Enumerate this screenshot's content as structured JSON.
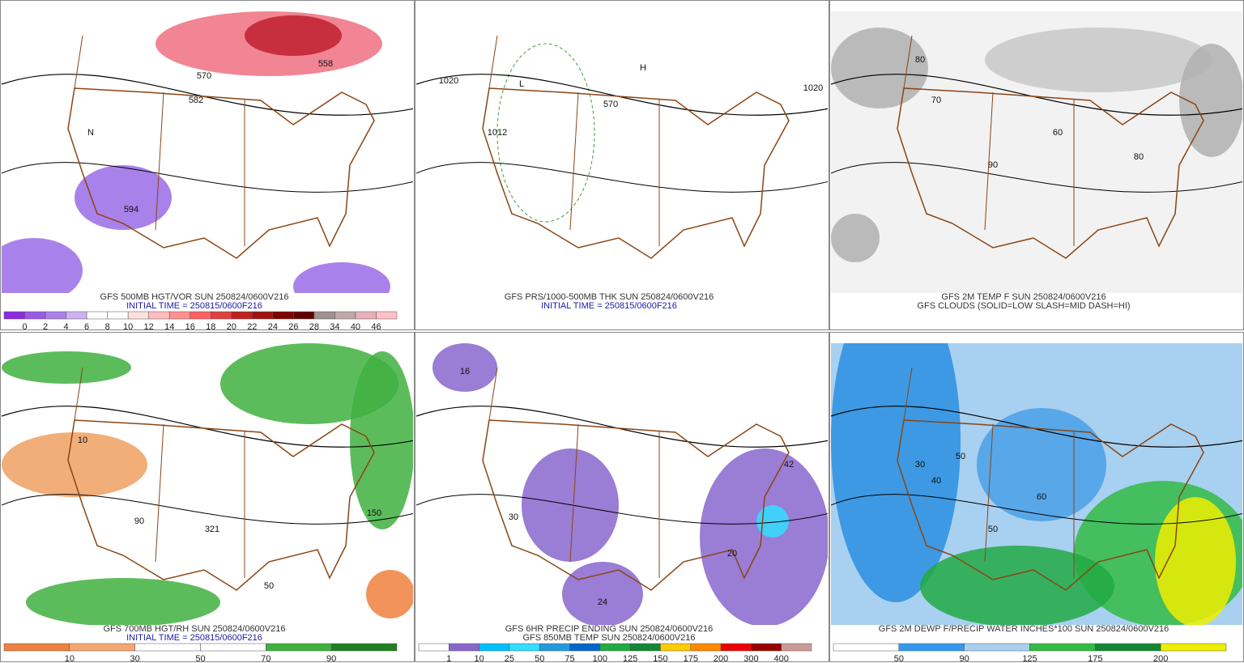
{
  "panels": [
    {
      "captions": [
        {
          "text": "GFS 500MB HGT/VOR SUN 250824/0600V216",
          "color": "#333333"
        },
        {
          "text": "INITIAL TIME = 250815/0600F216",
          "color": "#1a1aa6"
        }
      ],
      "background": "#ffffff",
      "colorbar": {
        "colors": [
          "#8a2be2",
          "#9b59e6",
          "#ad80ea",
          "#cdb2f2",
          "#ffffff",
          "#ffffff",
          "#ffe0e0",
          "#ffbcbc",
          "#ff9090",
          "#ff6060",
          "#e04040",
          "#c02020",
          "#a01010",
          "#800000",
          "#600000",
          "#a09090",
          "#c0a8a8",
          "#e8b0b8",
          "#ffc0c8"
        ],
        "labels": [
          "0",
          "2",
          "4",
          "6",
          "8",
          "10",
          "12",
          "14",
          "16",
          "18",
          "20",
          "22",
          "24",
          "26",
          "28",
          "34",
          "40",
          "46"
        ]
      },
      "map_labels": [
        "570",
        "582",
        "558",
        "594",
        "N"
      ]
    },
    {
      "captions": [
        {
          "text": "GFS PRS/1000-500MB THK SUN 250824/0600V216",
          "color": "#333333"
        },
        {
          "text": "INITIAL TIME = 250815/0600F216",
          "color": "#1a1aa6"
        }
      ],
      "background": "#ffffff",
      "map_labels": [
        "1020",
        "1012",
        "L",
        "H",
        "570",
        "1020"
      ]
    },
    {
      "captions": [
        {
          "text": "GFS 2M TEMP F SUN 250824/0600V216",
          "color": "#333333"
        },
        {
          "text": "GFS CLOUDS (SOLID=LOW SLASH=MID DASH=HI)",
          "color": "#333333"
        }
      ],
      "background": "#f2f2f2",
      "map_labels": [
        "80",
        "70",
        "90",
        "60",
        "80"
      ]
    },
    {
      "captions": [
        {
          "text": "GFS 700MB HGT/RH SUN 250824/0600V216",
          "color": "#333333"
        },
        {
          "text": "INITIAL TIME = 250815/0600F216",
          "color": "#1a1aa6"
        }
      ],
      "background": "#ffffff",
      "colorbar": {
        "colors": [
          "#f08040",
          "#f4a870",
          "#ffffff",
          "#ffffff",
          "#40b040",
          "#208020"
        ],
        "labels": [
          "10",
          "30",
          "50",
          "70",
          "90"
        ]
      },
      "map_labels": [
        "90",
        "50",
        "321",
        "10",
        "150"
      ]
    },
    {
      "captions": [
        {
          "text": "GFS 6HR PRECIP ENDING SUN 250824/0600V216",
          "color": "#333333"
        },
        {
          "text": "GFS 850MB TEMP SUN 250824/0600V216",
          "color": "#333333"
        }
      ],
      "background": "#ffffff",
      "colorbar": {
        "colors": [
          "#ffffff",
          "#8866cc",
          "#00c0ff",
          "#33ddff",
          "#2299dd",
          "#0066cc",
          "#22aa44",
          "#118833",
          "#ffcc00",
          "#ff8800",
          "#ee0000",
          "#990000",
          "#cc9999"
        ],
        "labels": [
          "1",
          "10",
          "25",
          "50",
          "75",
          "100",
          "125",
          "150",
          "175",
          "200",
          "300",
          "400"
        ]
      },
      "map_labels": [
        "24",
        "20",
        "42",
        "16",
        "30"
      ]
    },
    {
      "captions": [
        {
          "text": "GFS 2M DEWP F/PRECIP WATER INCHES*100 SUN 250824/0600V216",
          "color": "#333333"
        }
      ],
      "background": "#a8d0f0",
      "colorbar": {
        "colors": [
          "#ffffff",
          "#3399ee",
          "#a8d0f0",
          "#33bb44",
          "#118833",
          "#eeee00"
        ],
        "labels": [
          "50",
          "90",
          "125",
          "175",
          "200"
        ]
      },
      "map_labels": [
        "50",
        "40",
        "30",
        "60",
        "50"
      ]
    }
  ]
}
